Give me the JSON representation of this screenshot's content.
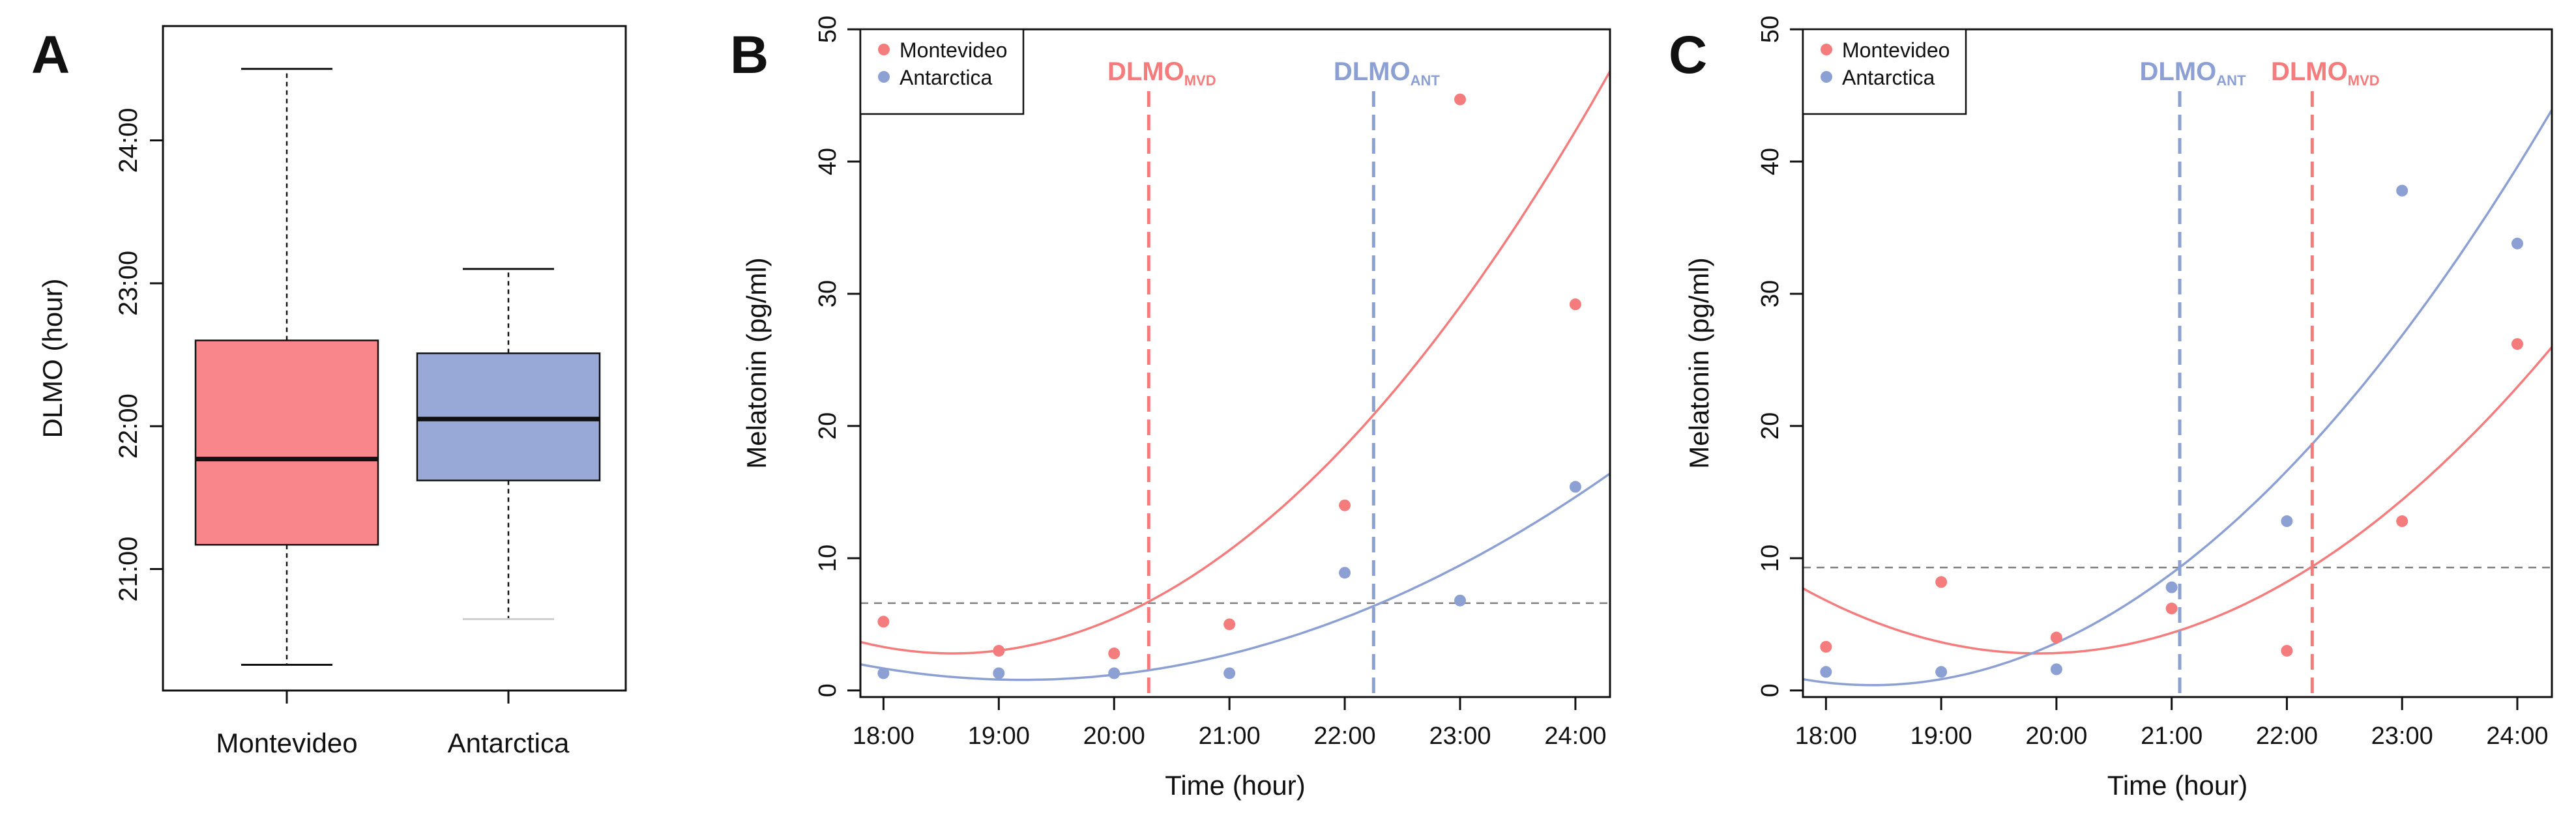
{
  "colors": {
    "montevideo": "#f47c7c",
    "montevideo_box": "#f8868a",
    "antarctica": "#8da0d3",
    "antarctica_box": "#98a9d8",
    "threshold": "#7f7f7f"
  },
  "chart_data": [
    {
      "panel": "A",
      "type": "boxplot",
      "xlabel": "",
      "ylabel": "DLMO (hour)",
      "ylim": [
        20.15,
        24.8
      ],
      "yticks": [
        21,
        22,
        23,
        24
      ],
      "ytick_labels": [
        "21:00",
        "22:00",
        "23:00",
        "24:00"
      ],
      "categories": [
        "Montevideo",
        "Antarctica"
      ],
      "boxes": [
        {
          "name": "Montevideo",
          "whisker_low": 20.33,
          "q1": 21.17,
          "median": 21.77,
          "q3": 22.6,
          "whisker_high": 24.5,
          "color": "#f8868a"
        },
        {
          "name": "Antarctica",
          "whisker_low": 20.65,
          "q1": 21.62,
          "median": 22.05,
          "q3": 22.51,
          "whisker_high": 23.1,
          "color": "#98a9d8"
        }
      ]
    },
    {
      "panel": "B",
      "type": "scatter",
      "xlabel": "Time (hour)",
      "ylabel": "Melatonin (pg/ml)",
      "xlim": [
        17.8,
        24.3
      ],
      "ylim": [
        -0.5,
        50
      ],
      "xticks": [
        18,
        19,
        20,
        21,
        22,
        23,
        24
      ],
      "xtick_labels": [
        "18:00",
        "19:00",
        "20:00",
        "21:00",
        "22:00",
        "23:00",
        "24:00"
      ],
      "yticks": [
        0,
        10,
        20,
        30,
        40,
        50
      ],
      "ytick_labels": [
        "0",
        "10",
        "20",
        "30",
        "40",
        "50"
      ],
      "legend": {
        "position": "top-left",
        "entries": [
          "Montevideo",
          "Antarctica"
        ]
      },
      "threshold": 6.6,
      "series": [
        {
          "name": "Montevideo",
          "color": "#f47c7c",
          "x": [
            18,
            19,
            20,
            21,
            22,
            23,
            24
          ],
          "y": [
            5.2,
            3.0,
            2.8,
            5.0,
            14.0,
            44.7,
            29.2
          ],
          "fit": {
            "vertex_x": 18.6,
            "vertex_y": 2.8,
            "a": 1.355
          }
        },
        {
          "name": "Antarctica",
          "color": "#8da0d3",
          "x": [
            18,
            19,
            20,
            21,
            22,
            23,
            24
          ],
          "y": [
            1.3,
            1.3,
            1.3,
            1.3,
            8.9,
            6.8,
            15.4
          ],
          "fit": {
            "vertex_x": 19.2,
            "vertex_y": 0.8,
            "a": 0.6
          }
        }
      ],
      "dlmo_lines": [
        {
          "label": "DLMO",
          "sub": "MVD",
          "x": 20.3,
          "color": "#f47c7c"
        },
        {
          "label": "DLMO",
          "sub": "ANT",
          "x": 22.25,
          "color": "#8da0d3"
        }
      ]
    },
    {
      "panel": "C",
      "type": "scatter",
      "xlabel": "Time (hour)",
      "ylabel": "Melatonin (pg/ml)",
      "xlim": [
        17.8,
        24.3
      ],
      "ylim": [
        -0.5,
        50
      ],
      "xticks": [
        18,
        19,
        20,
        21,
        22,
        23,
        24
      ],
      "xtick_labels": [
        "18:00",
        "19:00",
        "20:00",
        "21:00",
        "22:00",
        "23:00",
        "24:00"
      ],
      "yticks": [
        0,
        10,
        20,
        30,
        40,
        50
      ],
      "ytick_labels": [
        "0",
        "10",
        "20",
        "30",
        "40",
        "50"
      ],
      "legend": {
        "position": "top-left",
        "entries": [
          "Montevideo",
          "Antarctica"
        ]
      },
      "threshold": 9.3,
      "series": [
        {
          "name": "Montevideo",
          "color": "#f47c7c",
          "x": [
            18,
            19,
            20,
            21,
            22,
            23,
            24
          ],
          "y": [
            3.3,
            8.2,
            4.0,
            6.2,
            3.0,
            12.8,
            26.2
          ],
          "fit": {
            "vertex_x": 19.85,
            "vertex_y": 2.8,
            "a": 1.17
          }
        },
        {
          "name": "Antarctica",
          "color": "#8da0d3",
          "x": [
            18,
            19,
            20,
            21,
            22,
            23,
            24
          ],
          "y": [
            1.4,
            1.4,
            1.6,
            7.8,
            12.8,
            37.8,
            33.8
          ],
          "fit": {
            "vertex_x": 18.4,
            "vertex_y": 0.4,
            "a": 1.25
          }
        }
      ],
      "dlmo_lines": [
        {
          "label": "DLMO",
          "sub": "ANT",
          "x": 21.07,
          "color": "#8da0d3"
        },
        {
          "label": "DLMO",
          "sub": "MVD",
          "x": 22.22,
          "color": "#f47c7c"
        }
      ]
    }
  ]
}
